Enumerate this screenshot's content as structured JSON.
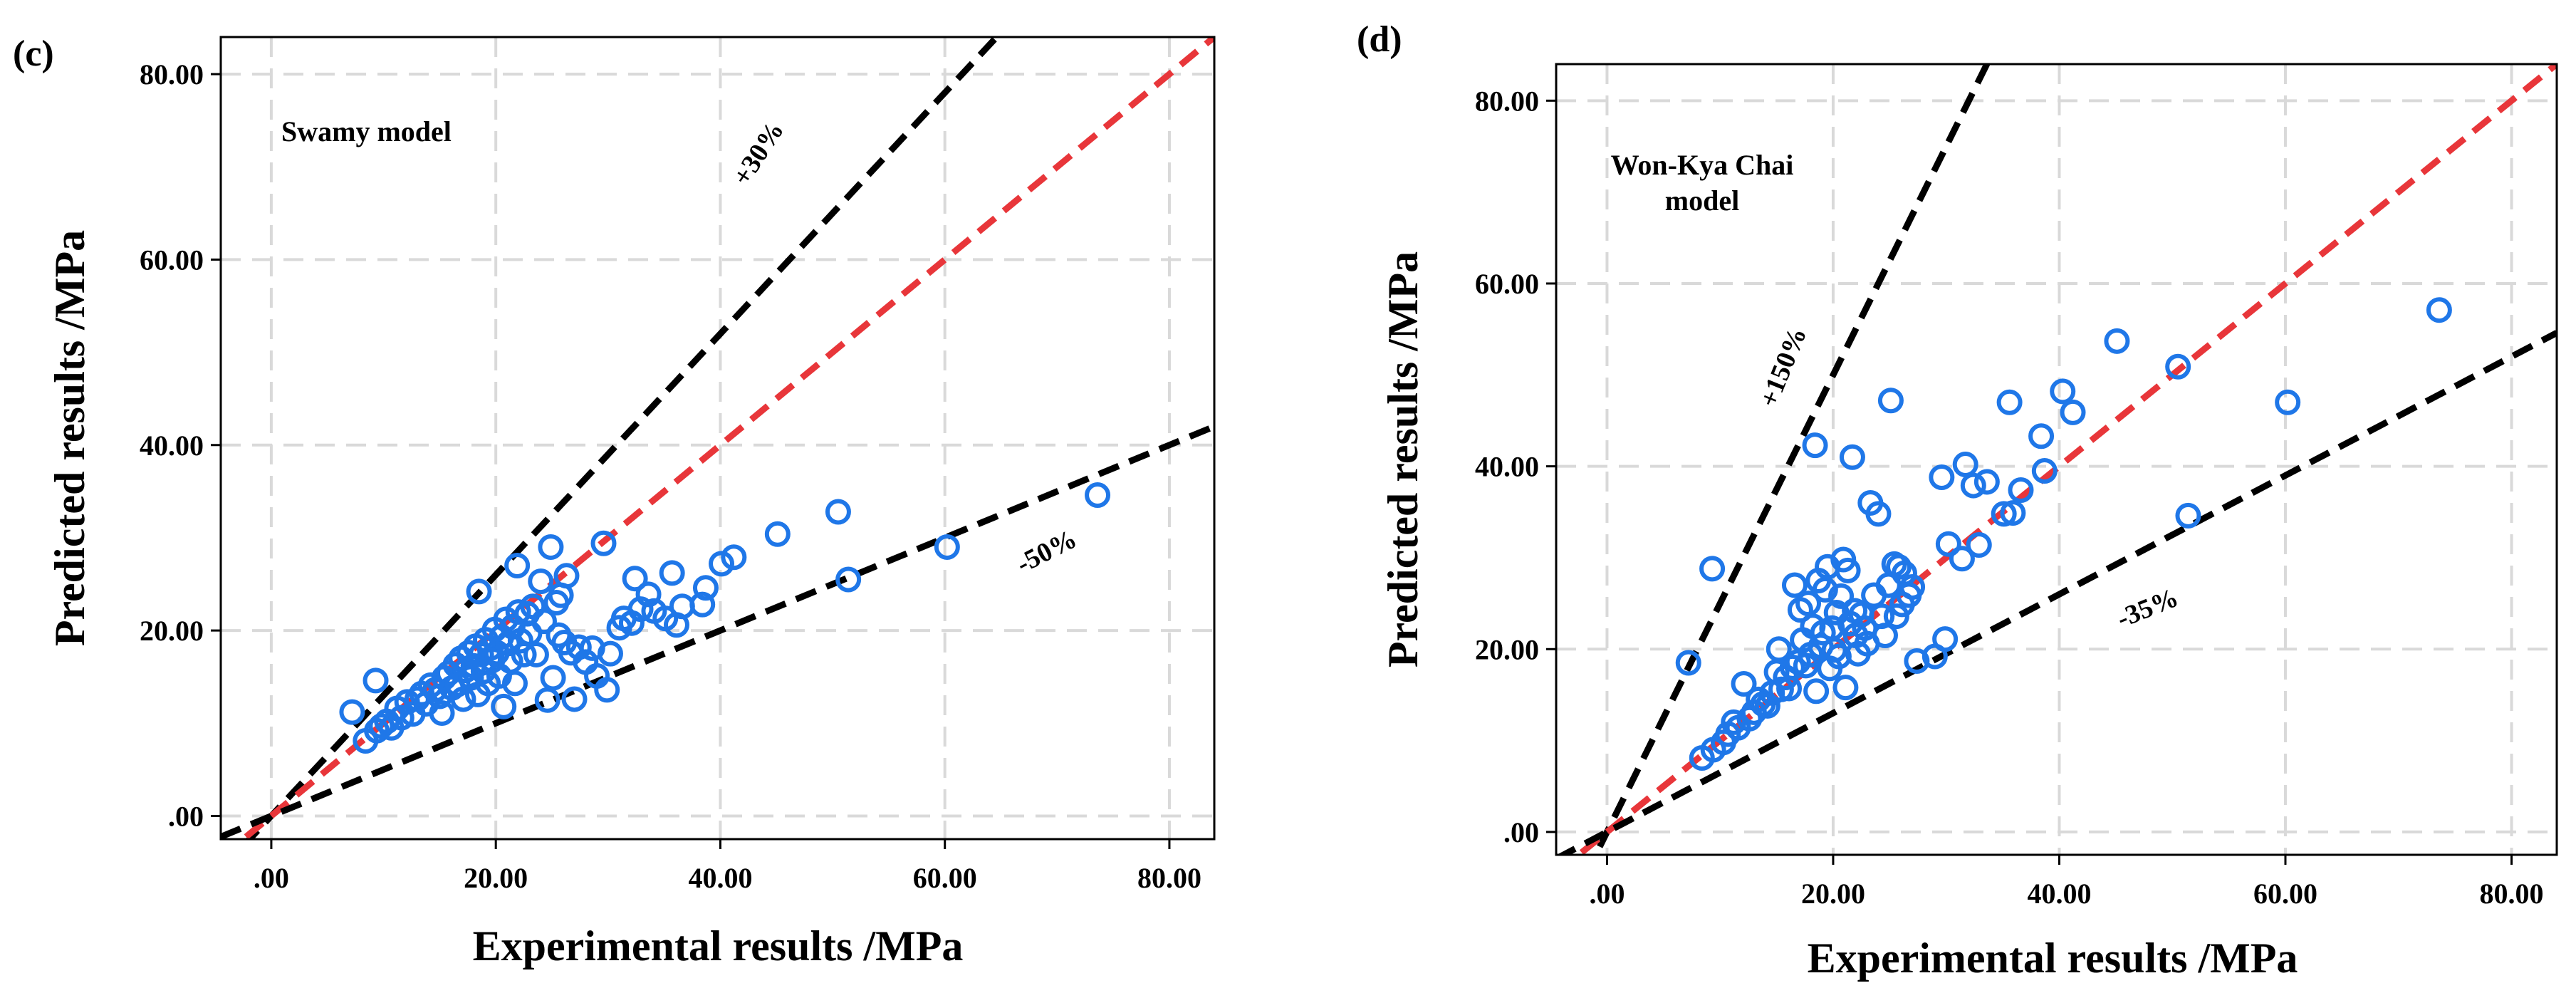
{
  "chart_data": [
    {
      "type": "scatter",
      "panel_label": "(c)",
      "annotation": [
        "Swamy model"
      ],
      "xlabel": "Experimental results /MPa",
      "ylabel": "Predicted results /MPa",
      "xlim": [
        -4.5,
        84
      ],
      "ylim": [
        -2.5,
        84
      ],
      "x_ticks": [
        0,
        20,
        40,
        60,
        80
      ],
      "y_ticks": [
        0,
        20,
        40,
        60,
        80
      ],
      "x_tick_labels": [
        ".00",
        "20.00",
        "40.00",
        "60.00",
        "80.00"
      ],
      "y_tick_labels": [
        ".00",
        "20.00",
        "40.00",
        "60.00",
        "80.00"
      ],
      "grid": true,
      "marker_color": "#1f77e8",
      "reference_lines": [
        {
          "label": "+30%",
          "slope": 1.3,
          "color": "#000000"
        },
        {
          "label": "",
          "slope": 1.0,
          "color": "#e8363a"
        },
        {
          "label": "-50%",
          "slope": 0.5,
          "color": "#000000"
        }
      ],
      "points": [
        [
          7.2,
          11.2
        ],
        [
          8.4,
          8.1
        ],
        [
          9.3,
          14.6
        ],
        [
          9.4,
          9.2
        ],
        [
          9.8,
          9.7
        ],
        [
          10.3,
          10.2
        ],
        [
          10.7,
          9.5
        ],
        [
          11.2,
          11.6
        ],
        [
          11.6,
          10.6
        ],
        [
          12.1,
          12.3
        ],
        [
          12.6,
          11.0
        ],
        [
          13.0,
          12.6
        ],
        [
          13.4,
          13.2
        ],
        [
          13.8,
          12.1
        ],
        [
          14.2,
          14.1
        ],
        [
          14.6,
          13.6
        ],
        [
          15.0,
          12.9
        ],
        [
          15.2,
          11.1
        ],
        [
          15.4,
          14.9
        ],
        [
          15.8,
          15.4
        ],
        [
          16.1,
          13.8
        ],
        [
          16.4,
          16.3
        ],
        [
          16.6,
          14.2
        ],
        [
          16.9,
          17.0
        ],
        [
          17.1,
          12.6
        ],
        [
          17.3,
          15.7
        ],
        [
          17.6,
          17.6
        ],
        [
          17.8,
          14.9
        ],
        [
          18.0,
          16.2
        ],
        [
          18.2,
          18.3
        ],
        [
          18.4,
          13.1
        ],
        [
          18.5,
          24.2
        ],
        [
          18.7,
          17.4
        ],
        [
          18.9,
          15.6
        ],
        [
          19.1,
          19.0
        ],
        [
          19.3,
          14.3
        ],
        [
          19.5,
          18.1
        ],
        [
          19.7,
          16.8
        ],
        [
          19.9,
          20.1
        ],
        [
          20.1,
          17.6
        ],
        [
          20.3,
          15.1
        ],
        [
          20.5,
          19.3
        ],
        [
          20.7,
          11.8
        ],
        [
          20.9,
          21.2
        ],
        [
          21.1,
          18.6
        ],
        [
          21.3,
          16.7
        ],
        [
          21.5,
          20.4
        ],
        [
          21.7,
          14.3
        ],
        [
          21.9,
          27.0
        ],
        [
          22.0,
          22.0
        ],
        [
          22.2,
          18.9
        ],
        [
          22.5,
          17.4
        ],
        [
          22.8,
          21.8
        ],
        [
          23.0,
          19.7
        ],
        [
          23.3,
          22.6
        ],
        [
          23.6,
          17.4
        ],
        [
          24.0,
          25.3
        ],
        [
          24.3,
          21.0
        ],
        [
          24.6,
          12.5
        ],
        [
          24.9,
          29.0
        ],
        [
          25.1,
          14.9
        ],
        [
          25.4,
          23.0
        ],
        [
          25.6,
          19.5
        ],
        [
          25.8,
          23.8
        ],
        [
          26.1,
          18.7
        ],
        [
          26.3,
          25.9
        ],
        [
          26.7,
          17.6
        ],
        [
          27.0,
          12.6
        ],
        [
          27.4,
          18.2
        ],
        [
          28.0,
          16.6
        ],
        [
          28.6,
          18.1
        ],
        [
          29.0,
          15.1
        ],
        [
          29.6,
          29.4
        ],
        [
          29.9,
          13.6
        ],
        [
          30.2,
          17.5
        ],
        [
          31.0,
          20.3
        ],
        [
          31.4,
          21.3
        ],
        [
          32.1,
          20.8
        ],
        [
          32.4,
          25.6
        ],
        [
          32.9,
          22.3
        ],
        [
          33.6,
          23.9
        ],
        [
          34.1,
          22.1
        ],
        [
          35.1,
          21.3
        ],
        [
          35.7,
          26.2
        ],
        [
          36.1,
          20.6
        ],
        [
          36.6,
          22.6
        ],
        [
          38.4,
          22.8
        ],
        [
          38.7,
          24.6
        ],
        [
          40.1,
          27.2
        ],
        [
          41.2,
          27.9
        ],
        [
          45.1,
          30.4
        ],
        [
          50.5,
          32.8
        ],
        [
          51.4,
          25.5
        ],
        [
          60.2,
          29.0
        ],
        [
          73.6,
          34.6
        ]
      ]
    },
    {
      "type": "scatter",
      "panel_label": "(d)",
      "annotation": [
        "Won-Kya Chai",
        "model"
      ],
      "xlabel": "Experimental results /MPa",
      "ylabel": "Predicted results /MPa",
      "xlim": [
        -4.5,
        84
      ],
      "ylim": [
        -2.5,
        84
      ],
      "x_ticks": [
        0,
        20,
        40,
        60,
        80
      ],
      "y_ticks": [
        0,
        20,
        40,
        60,
        80
      ],
      "x_tick_labels": [
        ".00",
        "20.00",
        "40.00",
        "60.00",
        "80.00"
      ],
      "y_tick_labels": [
        ".00",
        "20.00",
        "40.00",
        "60.00",
        "80.00"
      ],
      "grid": true,
      "marker_color": "#1f77e8",
      "reference_lines": [
        {
          "label": "+150%",
          "slope": 2.5,
          "color": "#000000"
        },
        {
          "label": "",
          "slope": 1.0,
          "color": "#e8363a"
        },
        {
          "label": "-35%",
          "slope": 0.65,
          "color": "#000000"
        }
      ],
      "points": [
        [
          7.2,
          18.5
        ],
        [
          8.4,
          8.1
        ],
        [
          9.3,
          28.8
        ],
        [
          9.4,
          9.0
        ],
        [
          10.3,
          9.8
        ],
        [
          10.7,
          10.7
        ],
        [
          11.2,
          12.0
        ],
        [
          11.6,
          11.4
        ],
        [
          12.1,
          16.2
        ],
        [
          12.6,
          12.4
        ],
        [
          13.0,
          13.1
        ],
        [
          13.4,
          14.5
        ],
        [
          13.8,
          14.0
        ],
        [
          14.2,
          13.8
        ],
        [
          14.6,
          15.2
        ],
        [
          15.0,
          17.5
        ],
        [
          15.2,
          20.0
        ],
        [
          15.4,
          15.6
        ],
        [
          15.8,
          16.9
        ],
        [
          16.1,
          15.7
        ],
        [
          16.4,
          18.0
        ],
        [
          16.6,
          27.0
        ],
        [
          16.9,
          18.6
        ],
        [
          17.1,
          24.3
        ],
        [
          17.3,
          21.0
        ],
        [
          17.6,
          18.2
        ],
        [
          17.8,
          25.0
        ],
        [
          18.0,
          19.4
        ],
        [
          18.2,
          22.5
        ],
        [
          18.4,
          42.3
        ],
        [
          18.5,
          15.4
        ],
        [
          18.7,
          27.5
        ],
        [
          18.9,
          20.3
        ],
        [
          19.1,
          21.8
        ],
        [
          19.3,
          26.5
        ],
        [
          19.5,
          29.0
        ],
        [
          19.7,
          17.9
        ],
        [
          19.9,
          22.3
        ],
        [
          20.1,
          19.9
        ],
        [
          20.3,
          24.0
        ],
        [
          20.5,
          19.2
        ],
        [
          20.7,
          25.8
        ],
        [
          20.9,
          29.8
        ],
        [
          21.1,
          15.8
        ],
        [
          21.3,
          28.6
        ],
        [
          21.5,
          22.8
        ],
        [
          21.7,
          41.0
        ],
        [
          21.9,
          24.2
        ],
        [
          22.0,
          21.5
        ],
        [
          22.2,
          19.5
        ],
        [
          22.5,
          23.8
        ],
        [
          22.8,
          22.3
        ],
        [
          23.0,
          20.6
        ],
        [
          23.3,
          36.0
        ],
        [
          23.6,
          25.9
        ],
        [
          24.0,
          34.8
        ],
        [
          24.3,
          23.6
        ],
        [
          24.6,
          21.5
        ],
        [
          24.9,
          27.0
        ],
        [
          25.1,
          47.2
        ],
        [
          25.4,
          29.3
        ],
        [
          25.6,
          23.6
        ],
        [
          25.8,
          29.0
        ],
        [
          26.1,
          24.9
        ],
        [
          26.3,
          28.3
        ],
        [
          26.7,
          25.9
        ],
        [
          27.0,
          26.8
        ],
        [
          27.4,
          18.7
        ],
        [
          29.0,
          19.2
        ],
        [
          29.6,
          38.8
        ],
        [
          29.9,
          21.1
        ],
        [
          30.2,
          31.5
        ],
        [
          31.4,
          29.9
        ],
        [
          31.7,
          40.2
        ],
        [
          32.4,
          37.9
        ],
        [
          32.9,
          31.4
        ],
        [
          33.6,
          38.3
        ],
        [
          35.1,
          34.8
        ],
        [
          35.6,
          47.0
        ],
        [
          35.9,
          34.9
        ],
        [
          36.6,
          37.4
        ],
        [
          38.4,
          43.3
        ],
        [
          38.7,
          39.5
        ],
        [
          40.3,
          48.2
        ],
        [
          41.2,
          45.9
        ],
        [
          45.1,
          53.7
        ],
        [
          50.5,
          50.9
        ],
        [
          51.4,
          34.6
        ],
        [
          60.2,
          47.0
        ],
        [
          73.6,
          57.1
        ]
      ]
    }
  ]
}
